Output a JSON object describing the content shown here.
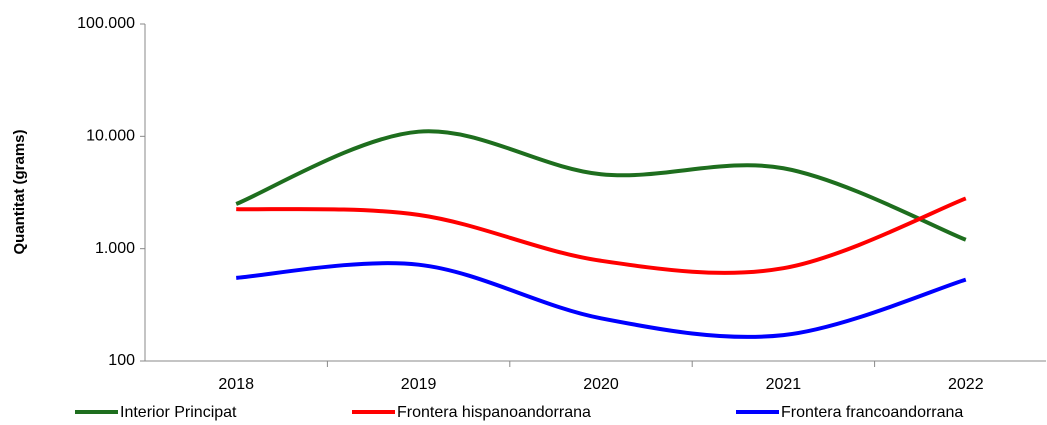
{
  "chart_data": {
    "type": "line",
    "y_label": "Quantitat (grams)",
    "categories": [
      "2018",
      "2019",
      "2020",
      "2021",
      "2022"
    ],
    "series": [
      {
        "name": "Interior Principat",
        "color": "#1e6e1e",
        "values": [
          2500,
          11000,
          4600,
          5200,
          1200
        ]
      },
      {
        "name": "Frontera hispanoandorrana",
        "color": "#ff0000",
        "values": [
          2250,
          2000,
          780,
          670,
          2800
        ]
      },
      {
        "name": "Frontera francoandorrana",
        "color": "#0000ff",
        "values": [
          550,
          720,
          240,
          170,
          530
        ]
      }
    ],
    "ylim": [
      100,
      100000
    ],
    "log_y": true,
    "yticks": [
      100,
      {
        "value": 1000,
        "label": "1.000"
      },
      {
        "value": 10000,
        "label": "10.000"
      },
      {
        "value": 100000,
        "label": "100.000"
      }
    ],
    "legend": "bottom"
  }
}
